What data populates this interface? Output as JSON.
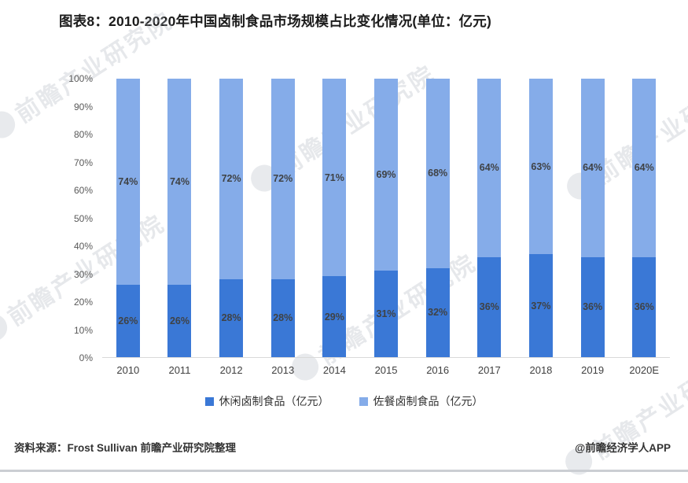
{
  "page": {
    "title": "图表8：2010-2020年中国卤制食品市场规模占比变化情况(单位：亿元)",
    "source_note": "资料来源：Frost Sullivan 前瞻产业研究院整理",
    "credit": "@前瞻经济学人APP",
    "watermark_text": "前瞻产业研究院"
  },
  "chart_data": {
    "type": "bar",
    "subtype": "stacked-percent",
    "title": "图表8：2010-2020年中国卤制食品市场规模占比变化情况(单位：亿元)",
    "categories": [
      "2010",
      "2011",
      "2012",
      "2013",
      "2014",
      "2015",
      "2016",
      "2017",
      "2018",
      "2019",
      "2020E"
    ],
    "series": [
      {
        "name": "休闲卤制食品（亿元）",
        "color": "#3a78d6",
        "values": [
          26,
          26,
          28,
          28,
          29,
          31,
          32,
          36,
          37,
          36,
          36
        ]
      },
      {
        "name": "佐餐卤制食品（亿元）",
        "color": "#85ace9",
        "values": [
          74,
          74,
          72,
          72,
          71,
          69,
          68,
          64,
          63,
          64,
          64
        ]
      }
    ],
    "value_suffix": "%",
    "xlabel": "",
    "ylabel": "",
    "ylim": [
      0,
      100
    ],
    "yticks": [
      "0%",
      "10%",
      "20%",
      "30%",
      "40%",
      "50%",
      "60%",
      "70%",
      "80%",
      "90%",
      "100%"
    ],
    "grid": false,
    "legend_position": "bottom"
  }
}
